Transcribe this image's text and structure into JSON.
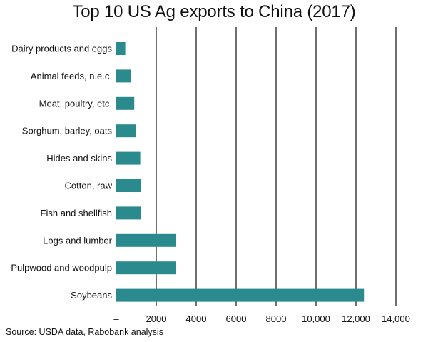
{
  "chart_data": {
    "type": "bar",
    "orientation": "horizontal",
    "title": "Top 10 US Ag exports to China (2017)",
    "xlabel": "",
    "ylabel": "",
    "categories": [
      "Dairy products and eggs",
      "Animal feeds, n.e.c.",
      "Meat, poultry, etc.",
      "Sorghum, barley, oats",
      "Hides and skins",
      "Cotton, raw",
      "Fish and shellfish",
      "Logs and lumber",
      "Pulpwood and woodpulp",
      "Soybeans"
    ],
    "values": [
      450,
      750,
      900,
      1000,
      1200,
      1250,
      1250,
      3000,
      3000,
      12400
    ],
    "xlim": [
      0,
      14000
    ],
    "xticks": [
      0,
      2000,
      4000,
      6000,
      8000,
      10000,
      12000,
      14000
    ],
    "xtick_labels": [
      "–",
      "2000",
      "4000",
      "6000",
      "8000",
      "10,000",
      "12,000",
      "14,000"
    ],
    "grid": "vertical",
    "bar_color": "#2a8a8e",
    "source": "Source: USDA data, Rabobank analysis"
  }
}
